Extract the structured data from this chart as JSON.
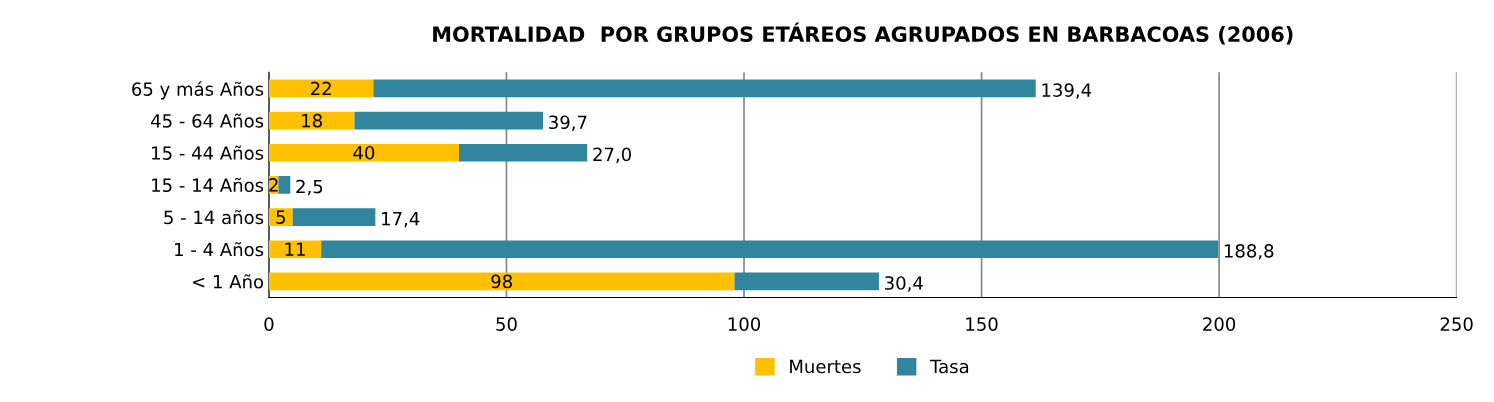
{
  "chart_data": {
    "type": "bar",
    "orientation": "horizontal",
    "stacked": true,
    "title": "MORTALIDAD  POR GRUPOS ETÁREOS AGRUPADOS EN BARBACOAS (2006)",
    "categories": [
      "65 y más Años",
      "45 - 64 Años",
      "15 - 44 Años",
      "15 - 14 Años",
      "5 - 14 años",
      "1 - 4 Años",
      "< 1 Año"
    ],
    "series": [
      {
        "name": "Muertes",
        "color": "#ffc000",
        "values": [
          22,
          18,
          40,
          2,
          5,
          11,
          98
        ],
        "value_labels": [
          "22",
          "18",
          "40",
          "2",
          "5",
          "11",
          "98"
        ]
      },
      {
        "name": "Tasa",
        "color": "#31859c",
        "values": [
          139.4,
          39.7,
          27.0,
          2.5,
          17.4,
          188.8,
          30.4
        ],
        "value_labels": [
          "139,4",
          "39,7",
          "27,0",
          "2,5",
          "17,4",
          "188,8",
          "30,4"
        ]
      }
    ],
    "xlim": [
      0,
      250
    ],
    "xticks": [
      0,
      50,
      100,
      150,
      200,
      250
    ],
    "grid": "x",
    "legend": "bottom"
  }
}
